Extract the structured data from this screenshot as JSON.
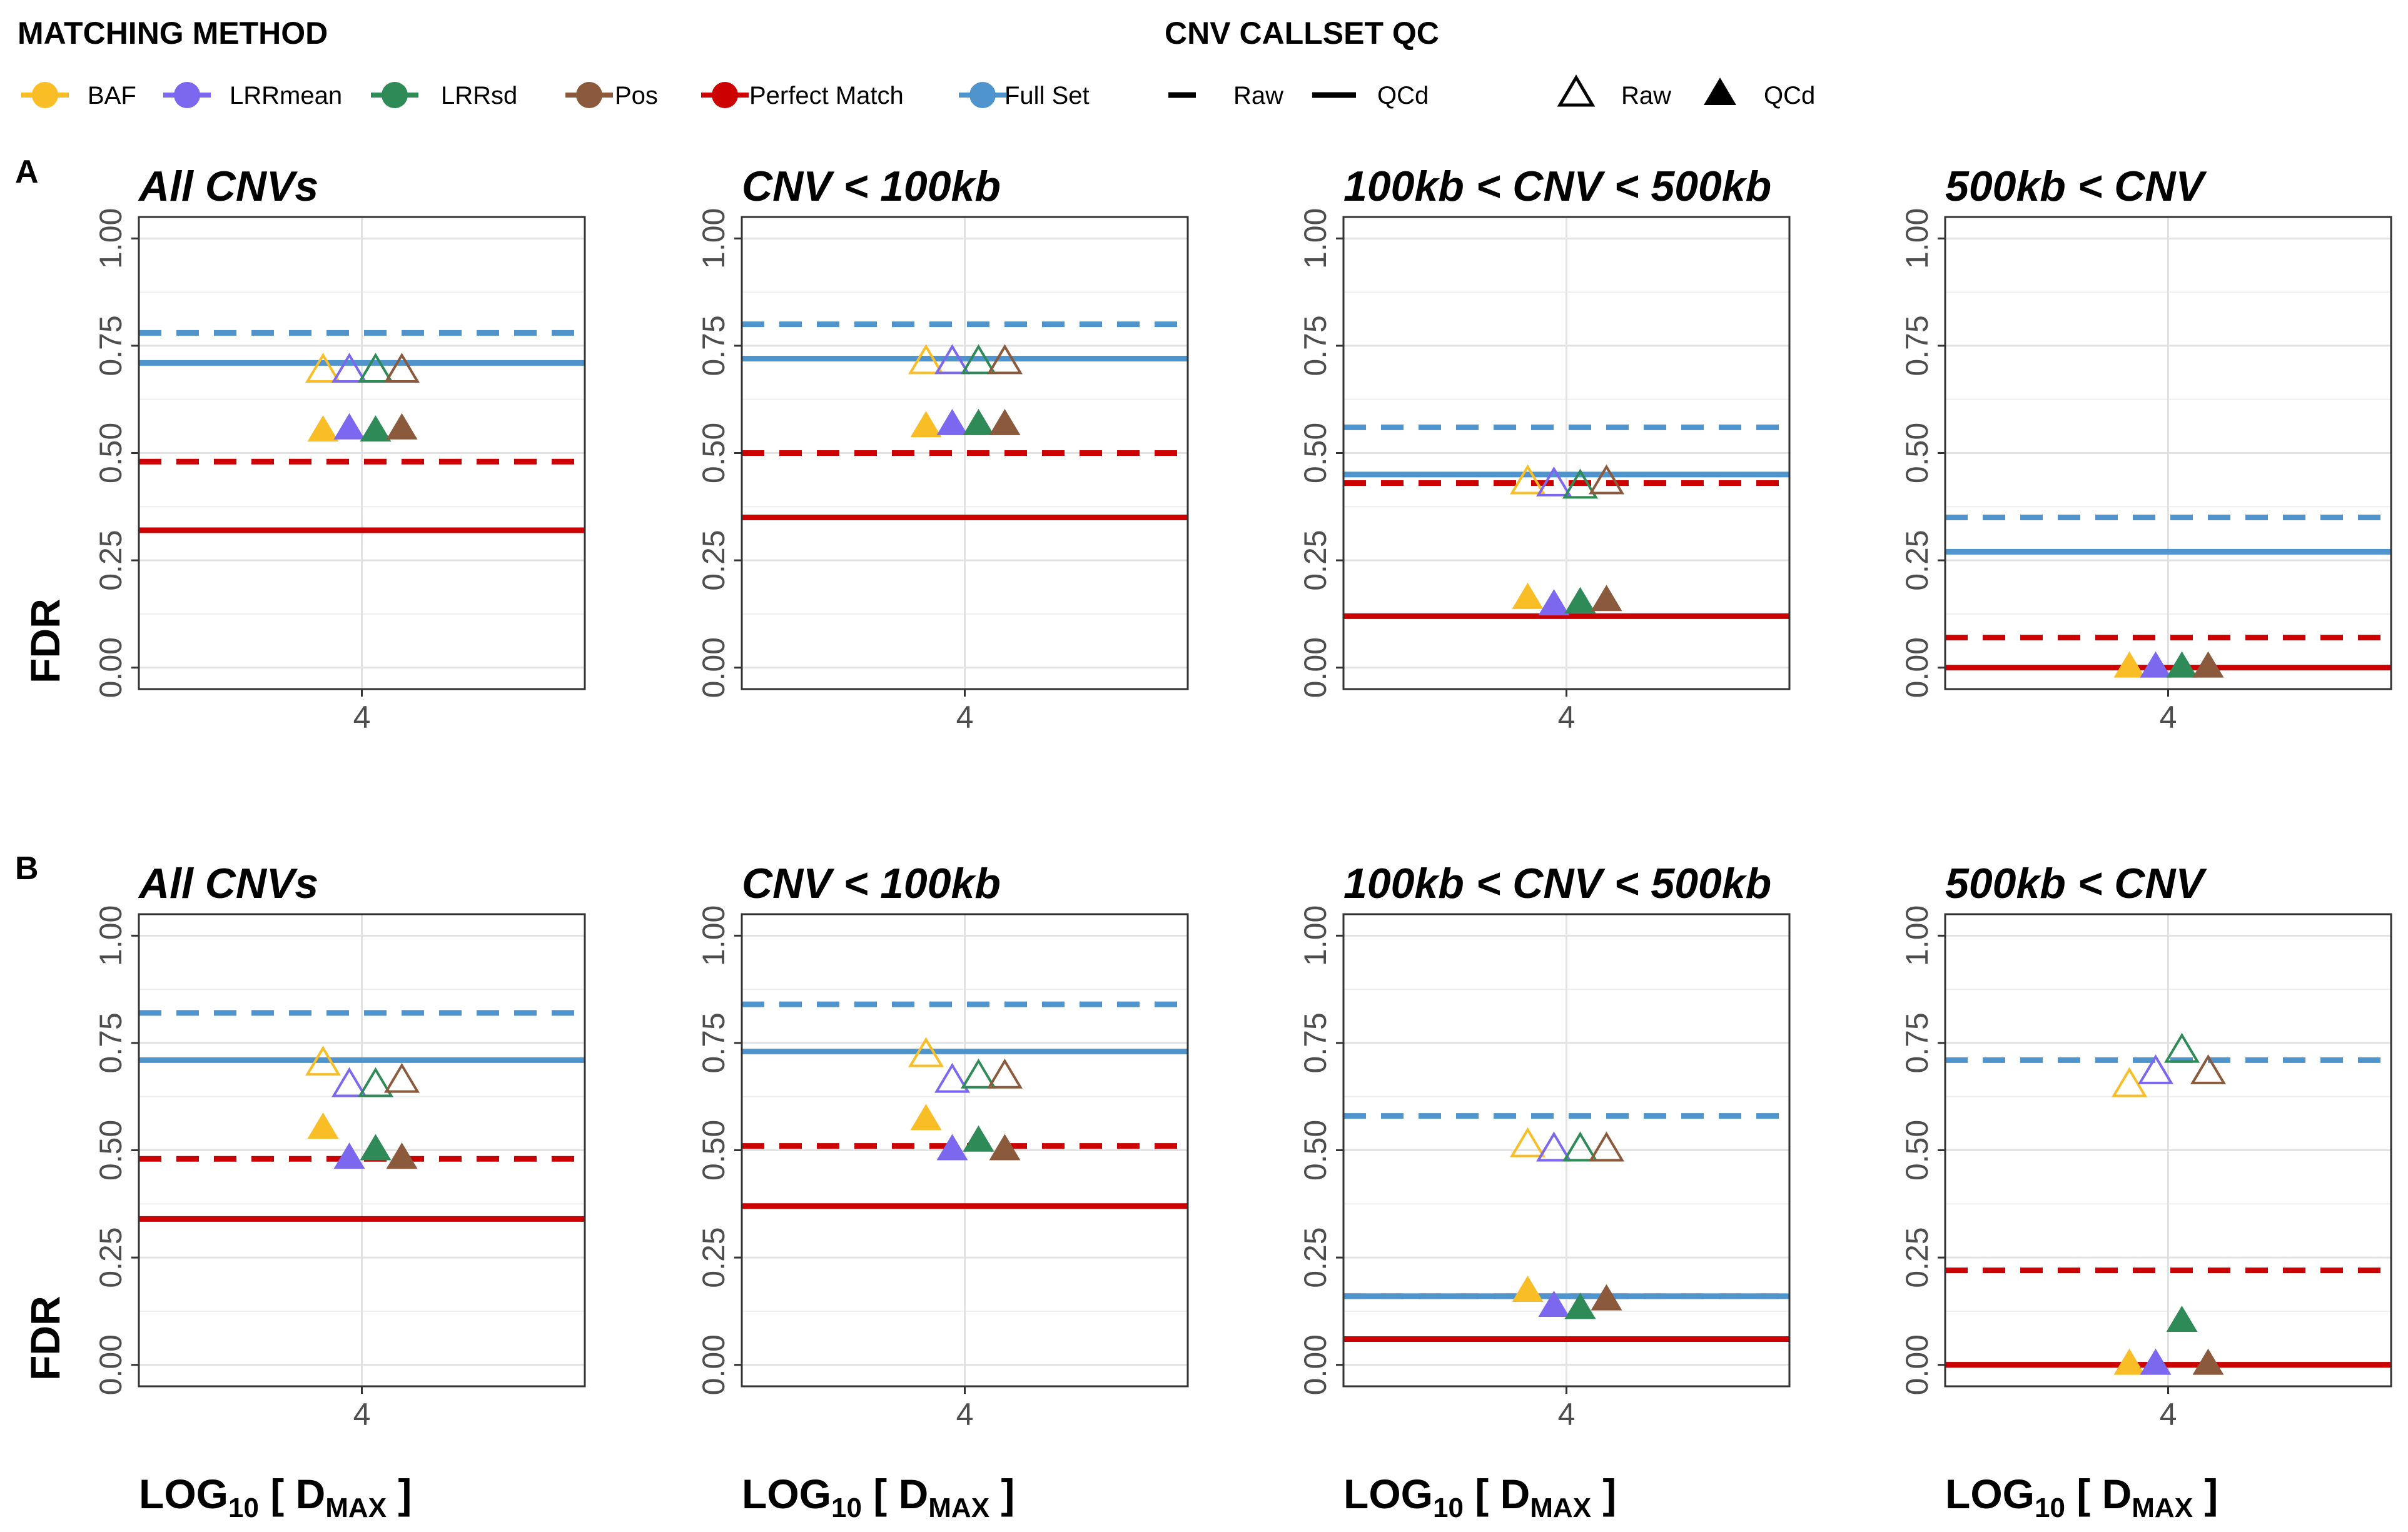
{
  "legend": {
    "method_title": "MATCHING METHOD",
    "qc_title": "CNV CALLSET QC",
    "methods": [
      {
        "key": "BAF",
        "label": "BAF",
        "color": "#F9BD26"
      },
      {
        "key": "LRRmean",
        "label": "LRRmean",
        "color": "#7B68EE"
      },
      {
        "key": "LRRsd",
        "label": "LRRsd",
        "color": "#2E8B57"
      },
      {
        "key": "Pos",
        "label": "Pos",
        "color": "#8B5A3C"
      },
      {
        "key": "Perfect",
        "label": "Perfect Match",
        "color": "#CC0000"
      },
      {
        "key": "Full",
        "label": "Full Set",
        "color": "#4F94CD"
      }
    ],
    "line_types": [
      {
        "label": "Raw",
        "style": "dashed"
      },
      {
        "label": "QCd",
        "style": "solid"
      }
    ],
    "shape_types": [
      {
        "label": "Raw",
        "style": "open-triangle"
      },
      {
        "label": "QCd",
        "style": "filled-triangle"
      }
    ]
  },
  "rows": [
    {
      "tag": "A",
      "ylabel": "FDR"
    },
    {
      "tag": "B",
      "ylabel": "FDR"
    }
  ],
  "column_titles": [
    "All CNVs",
    "CNV < 100kb",
    "100kb < CNV < 500kb",
    "500kb < CNV"
  ],
  "xlabel": {
    "main": "LOG",
    "sub": "10",
    "open": " [ D",
    "sub2": "MAX",
    "close": " ]"
  },
  "chart_data": [
    {
      "type": "scatter",
      "panel": "A",
      "title": "All CNVs",
      "xlabel": "LOG10 [ DMAX ]",
      "ylabel": "FDR",
      "xticks": [
        "4"
      ],
      "yticks": [
        "0.00",
        "0.25",
        "0.50",
        "0.75",
        "1.00"
      ],
      "ylim": [
        -0.05,
        1.05
      ],
      "grid": true,
      "lines": {
        "Full": {
          "raw": 0.78,
          "qcd": 0.71
        },
        "Perfect": {
          "raw": 0.48,
          "qcd": 0.32
        }
      },
      "points": {
        "raw": {
          "BAF": 0.69,
          "LRRmean": 0.69,
          "LRRsd": 0.69,
          "Pos": 0.69
        },
        "qcd": {
          "BAF": 0.55,
          "LRRmean": 0.555,
          "LRRsd": 0.55,
          "Pos": 0.555
        }
      }
    },
    {
      "type": "scatter",
      "panel": "A",
      "title": "CNV < 100kb",
      "xlabel": "LOG10 [ DMAX ]",
      "ylabel": "FDR",
      "xticks": [
        "4"
      ],
      "yticks": [
        "0.00",
        "0.25",
        "0.50",
        "0.75",
        "1.00"
      ],
      "ylim": [
        -0.05,
        1.05
      ],
      "grid": true,
      "lines": {
        "Full": {
          "raw": 0.8,
          "qcd": 0.72
        },
        "Perfect": {
          "raw": 0.5,
          "qcd": 0.35
        }
      },
      "points": {
        "raw": {
          "BAF": 0.71,
          "LRRmean": 0.71,
          "LRRsd": 0.71,
          "Pos": 0.71
        },
        "qcd": {
          "BAF": 0.56,
          "LRRmean": 0.565,
          "LRRsd": 0.565,
          "Pos": 0.565
        }
      }
    },
    {
      "type": "scatter",
      "panel": "A",
      "title": "100kb < CNV < 500kb",
      "xlabel": "LOG10 [ DMAX ]",
      "ylabel": "FDR",
      "xticks": [
        "4"
      ],
      "yticks": [
        "0.00",
        "0.25",
        "0.50",
        "0.75",
        "1.00"
      ],
      "ylim": [
        -0.05,
        1.05
      ],
      "grid": true,
      "lines": {
        "Full": {
          "raw": 0.56,
          "qcd": 0.45
        },
        "Perfect": {
          "raw": 0.43,
          "qcd": 0.12
        }
      },
      "points": {
        "raw": {
          "BAF": 0.43,
          "LRRmean": 0.425,
          "LRRsd": 0.42,
          "Pos": 0.43
        },
        "qcd": {
          "BAF": 0.16,
          "LRRmean": 0.145,
          "LRRsd": 0.15,
          "Pos": 0.155
        }
      }
    },
    {
      "type": "scatter",
      "panel": "A",
      "title": "500kb < CNV",
      "xlabel": "LOG10 [ DMAX ]",
      "ylabel": "FDR",
      "xticks": [
        "4"
      ],
      "yticks": [
        "0.00",
        "0.25",
        "0.50",
        "0.75",
        "1.00"
      ],
      "ylim": [
        -0.05,
        1.05
      ],
      "grid": true,
      "lines": {
        "Full": {
          "raw": 0.35,
          "qcd": 0.27
        },
        "Perfect": {
          "raw": 0.07,
          "qcd": 0.0
        }
      },
      "points": {
        "raw": {},
        "qcd": {
          "BAF": 0.0,
          "LRRmean": 0.0,
          "LRRsd": 0.0,
          "Pos": 0.0
        }
      }
    },
    {
      "type": "scatter",
      "panel": "B",
      "title": "All CNVs",
      "xlabel": "LOG10 [ DMAX ]",
      "ylabel": "FDR",
      "xticks": [
        "4"
      ],
      "yticks": [
        "0.00",
        "0.25",
        "0.50",
        "0.75",
        "1.00"
      ],
      "ylim": [
        -0.05,
        1.05
      ],
      "grid": true,
      "lines": {
        "Full": {
          "raw": 0.82,
          "qcd": 0.71
        },
        "Perfect": {
          "raw": 0.48,
          "qcd": 0.34
        }
      },
      "points": {
        "raw": {
          "BAF": 0.7,
          "LRRmean": 0.65,
          "LRRsd": 0.65,
          "Pos": 0.66
        },
        "qcd": {
          "BAF": 0.55,
          "LRRmean": 0.48,
          "LRRsd": 0.5,
          "Pos": 0.48
        }
      }
    },
    {
      "type": "scatter",
      "panel": "B",
      "title": "CNV < 100kb",
      "xlabel": "LOG10 [ DMAX ]",
      "ylabel": "FDR",
      "xticks": [
        "4"
      ],
      "yticks": [
        "0.00",
        "0.25",
        "0.50",
        "0.75",
        "1.00"
      ],
      "ylim": [
        -0.05,
        1.05
      ],
      "grid": true,
      "lines": {
        "Full": {
          "raw": 0.84,
          "qcd": 0.73
        },
        "Perfect": {
          "raw": 0.51,
          "qcd": 0.37
        }
      },
      "points": {
        "raw": {
          "BAF": 0.72,
          "LRRmean": 0.66,
          "LRRsd": 0.67,
          "Pos": 0.67
        },
        "qcd": {
          "BAF": 0.57,
          "LRRmean": 0.5,
          "LRRsd": 0.52,
          "Pos": 0.5
        }
      }
    },
    {
      "type": "scatter",
      "panel": "B",
      "title": "100kb < CNV < 500kb",
      "xlabel": "LOG10 [ DMAX ]",
      "ylabel": "FDR",
      "xticks": [
        "4"
      ],
      "yticks": [
        "0.00",
        "0.25",
        "0.50",
        "0.75",
        "1.00"
      ],
      "ylim": [
        -0.05,
        1.05
      ],
      "grid": true,
      "lines": {
        "Full": {
          "raw": 0.58,
          "qcd": 0.16
        },
        "Perfect": {
          "raw": 0.16,
          "qcd": 0.06
        }
      },
      "points": {
        "raw": {
          "BAF": 0.51,
          "LRRmean": 0.5,
          "LRRsd": 0.5,
          "Pos": 0.5
        },
        "qcd": {
          "BAF": 0.17,
          "LRRmean": 0.135,
          "LRRsd": 0.13,
          "Pos": 0.15
        }
      }
    },
    {
      "type": "scatter",
      "panel": "B",
      "title": "500kb < CNV",
      "xlabel": "LOG10 [ DMAX ]",
      "ylabel": "FDR",
      "xticks": [
        "4"
      ],
      "yticks": [
        "0.00",
        "0.25",
        "0.50",
        "0.75",
        "1.00"
      ],
      "ylim": [
        -0.05,
        1.05
      ],
      "grid": true,
      "lines": {
        "Full": {
          "raw": 0.71,
          "qcd": 0.0
        },
        "Perfect": {
          "raw": 0.22,
          "qcd": 0.0
        }
      },
      "points": {
        "raw": {
          "BAF": 0.65,
          "LRRmean": 0.68,
          "LRRsd": 0.73,
          "Pos": 0.68
        },
        "qcd": {
          "BAF": 0.0,
          "LRRmean": 0.0,
          "LRRsd": 0.1,
          "Pos": 0.0
        }
      }
    }
  ]
}
